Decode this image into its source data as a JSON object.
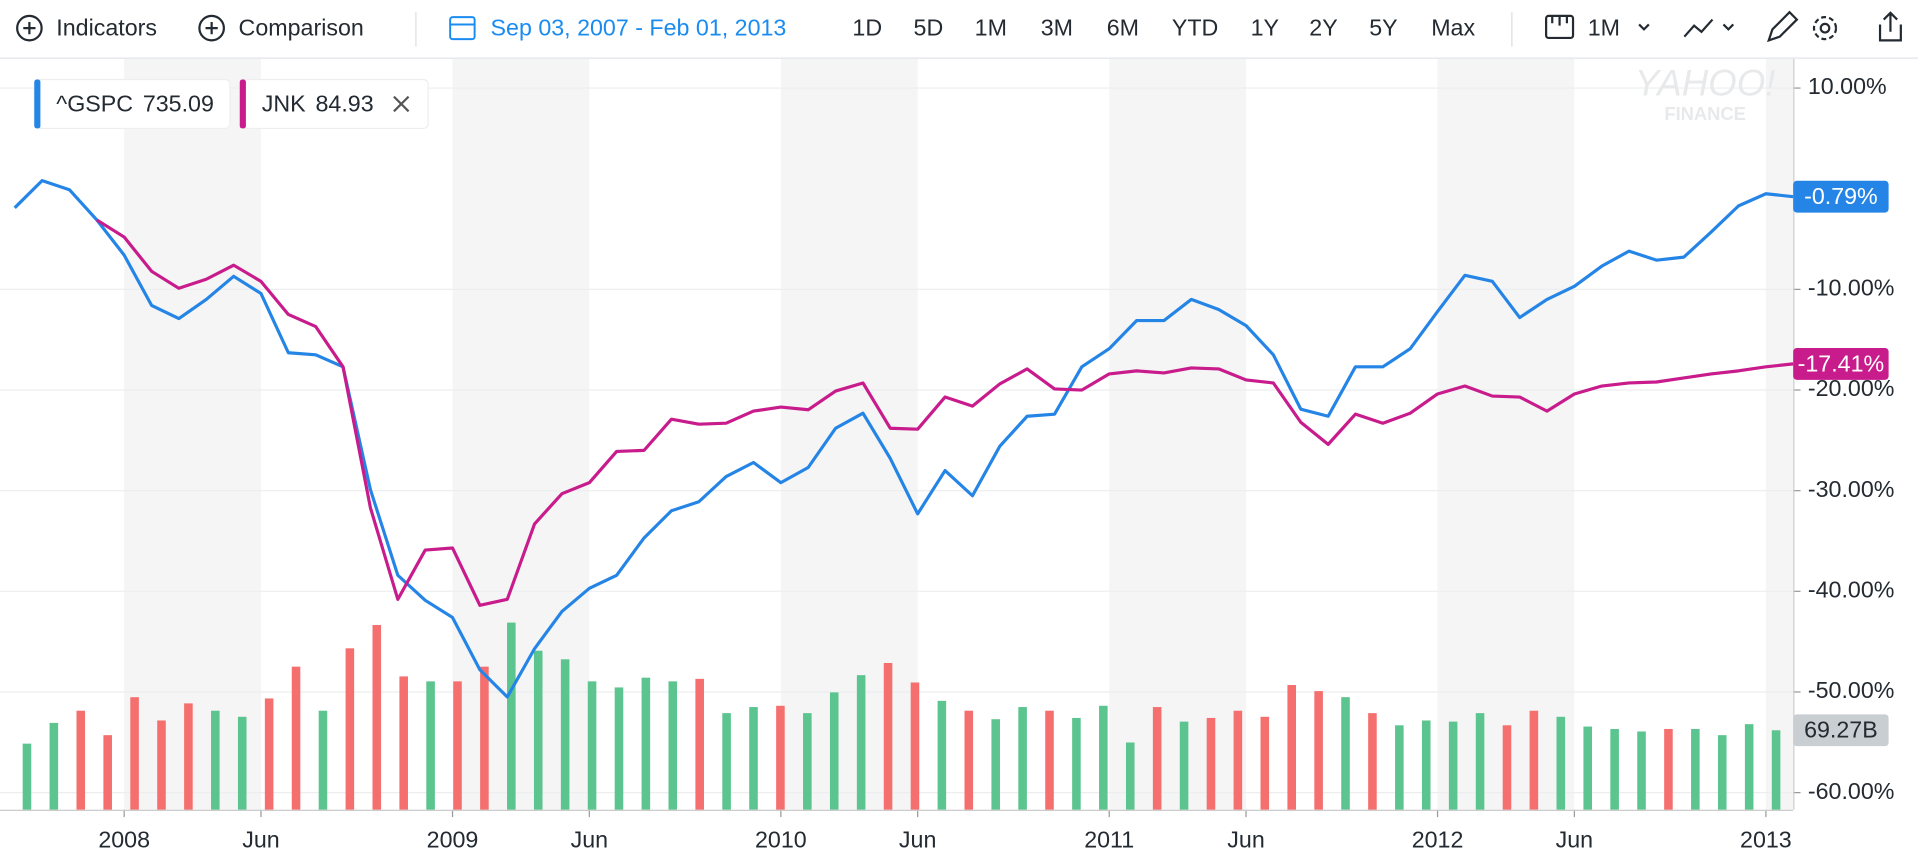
{
  "toolbar": {
    "indicators": "Indicators",
    "comparison": "Comparison",
    "date_range": "Sep 03, 2007 - Feb 01, 2013",
    "ranges": [
      "1D",
      "5D",
      "1M",
      "3M",
      "6M",
      "YTD",
      "1Y",
      "2Y",
      "5Y",
      "Max"
    ],
    "interval": "1M"
  },
  "watermark": [
    "YAHOO!",
    "FINANCE"
  ],
  "chart_data": {
    "type": "line",
    "x": [
      "2007-09",
      "2007-10",
      "2007-11",
      "2007-12",
      "2008-01",
      "2008-02",
      "2008-03",
      "2008-04",
      "2008-05",
      "2008-06",
      "2008-07",
      "2008-08",
      "2008-09",
      "2008-10",
      "2008-11",
      "2008-12",
      "2009-01",
      "2009-02",
      "2009-03",
      "2009-04",
      "2009-05",
      "2009-06",
      "2009-07",
      "2009-08",
      "2009-09",
      "2009-10",
      "2009-11",
      "2009-12",
      "2010-01",
      "2010-02",
      "2010-03",
      "2010-04",
      "2010-05",
      "2010-06",
      "2010-07",
      "2010-08",
      "2010-09",
      "2010-10",
      "2010-11",
      "2010-12",
      "2011-01",
      "2011-02",
      "2011-03",
      "2011-04",
      "2011-05",
      "2011-06",
      "2011-07",
      "2011-08",
      "2011-09",
      "2011-10",
      "2011-11",
      "2011-12",
      "2012-01",
      "2012-02",
      "2012-03",
      "2012-04",
      "2012-05",
      "2012-06",
      "2012-07",
      "2012-08",
      "2012-09",
      "2012-10",
      "2012-11",
      "2012-12",
      "2013-01",
      "2013-02"
    ],
    "series": [
      {
        "name": "^GSPC",
        "price": 735.09,
        "color": "#2585e6",
        "last_label": "-0.79%",
        "values": [
          -1.9,
          0.8,
          -0.1,
          -3.1,
          -6.6,
          -11.6,
          -12.9,
          -11.0,
          -8.7,
          -10.4,
          -16.3,
          -16.5,
          -17.7,
          -29.9,
          -38.4,
          -40.9,
          -42.6,
          -47.8,
          -50.5,
          -45.7,
          -42.0,
          -39.7,
          -38.4,
          -34.7,
          -32.0,
          -31.1,
          -28.6,
          -27.2,
          -29.2,
          -27.7,
          -23.8,
          -22.3,
          -26.8,
          -32.3,
          -28.0,
          -30.5,
          -25.6,
          -22.6,
          -22.4,
          -17.7,
          -15.9,
          -13.1,
          -13.1,
          -11.0,
          -12.0,
          -13.6,
          -16.5,
          -21.9,
          -22.6,
          -17.7,
          -17.7,
          -15.9,
          -12.2,
          -8.6,
          -9.2,
          -12.8,
          -11.0,
          -9.7,
          -7.7,
          -6.2,
          -7.1,
          -6.8,
          -4.3,
          -1.7,
          -0.5,
          -0.79
        ]
      },
      {
        "name": "JNK",
        "price": 84.93,
        "color": "#c81b8c",
        "last_label": "-17.41%",
        "values": [
          null,
          null,
          null,
          -3.1,
          -4.8,
          -8.2,
          -9.9,
          -9.0,
          -7.6,
          -9.2,
          -12.5,
          -13.7,
          -17.7,
          -31.7,
          -40.8,
          -35.9,
          -35.7,
          -41.4,
          -40.8,
          -33.3,
          -30.3,
          -29.2,
          -26.1,
          -26.0,
          -22.9,
          -23.4,
          -23.3,
          -22.1,
          -21.7,
          -21.96,
          -20.1,
          -19.3,
          -23.8,
          -23.9,
          -20.7,
          -21.6,
          -19.4,
          -17.9,
          -19.9,
          -20.0,
          -18.4,
          -18.1,
          -18.3,
          -17.8,
          -17.9,
          -19.0,
          -19.3,
          -23.2,
          -25.4,
          -22.4,
          -23.3,
          -22.3,
          -20.4,
          -19.6,
          -20.6,
          -20.7,
          -22.1,
          -20.4,
          -19.6,
          -19.3,
          -19.2,
          -18.8,
          -18.4,
          -18.1,
          -17.7,
          -17.41
        ]
      }
    ],
    "volume": {
      "last_label": "69.27B",
      "vlim": [
        0,
        629
      ],
      "up_color": "#5cc48f",
      "down_color": "#f46f6e",
      "values": [
        57.6,
        75.7,
        86.3,
        65.0,
        98.1,
        77.8,
        92.7,
        86.3,
        81.0,
        97.0,
        124.7,
        86.3,
        140.7,
        161.0,
        116.2,
        111.9,
        111.9,
        124.7,
        163.1,
        138.6,
        131.1,
        111.9,
        106.6,
        115.1,
        111.9,
        114.1,
        84.2,
        89.5,
        90.6,
        84.2,
        102.3,
        117.3,
        127.9,
        110.9,
        94.9,
        86.3,
        78.9,
        89.5,
        86.3,
        80.0,
        90.6,
        58.6,
        89.5,
        76.8,
        80.0,
        86.3,
        81.0,
        108.7,
        103.4,
        98.1,
        84.2,
        73.6,
        77.8,
        76.8,
        84.2,
        73.6,
        86.3,
        81.0,
        72.5,
        70.4,
        68.2,
        70.4,
        70.4,
        65.0,
        74.6,
        69.27
      ],
      "up": [
        true,
        true,
        false,
        false,
        false,
        false,
        false,
        true,
        true,
        false,
        false,
        true,
        false,
        false,
        false,
        true,
        false,
        false,
        true,
        true,
        true,
        true,
        true,
        true,
        true,
        false,
        true,
        true,
        false,
        true,
        true,
        true,
        false,
        false,
        true,
        false,
        true,
        true,
        false,
        true,
        true,
        true,
        false,
        true,
        false,
        false,
        false,
        false,
        false,
        true,
        false,
        true,
        true,
        true,
        true,
        false,
        false,
        true,
        true,
        true,
        true,
        false,
        true,
        true,
        true,
        true
      ]
    },
    "ylim": [
      -60,
      10
    ],
    "yticks": [
      {
        "value": 10,
        "label": "10.00%"
      },
      {
        "value": -10,
        "label": "-10.00%"
      },
      {
        "value": -20,
        "label": "-20.00%"
      },
      {
        "value": -30,
        "label": "-30.00%"
      },
      {
        "value": -40,
        "label": "-40.00%"
      },
      {
        "value": -50,
        "label": "-50.00%"
      },
      {
        "value": -60,
        "label": "-60.00%"
      }
    ],
    "xticks": [
      {
        "value": "2008-01",
        "label": "2008"
      },
      {
        "value": "2008-06",
        "label": "Jun"
      },
      {
        "value": "2009-01",
        "label": "2009"
      },
      {
        "value": "2009-06",
        "label": "Jun"
      },
      {
        "value": "2010-01",
        "label": "2010"
      },
      {
        "value": "2010-06",
        "label": "Jun"
      },
      {
        "value": "2011-01",
        "label": "2011"
      },
      {
        "value": "2011-06",
        "label": "Jun"
      },
      {
        "value": "2012-01",
        "label": "2012"
      },
      {
        "value": "2012-06",
        "label": "Jun"
      },
      {
        "value": "2013-01",
        "label": "2013"
      }
    ],
    "grid": true
  }
}
